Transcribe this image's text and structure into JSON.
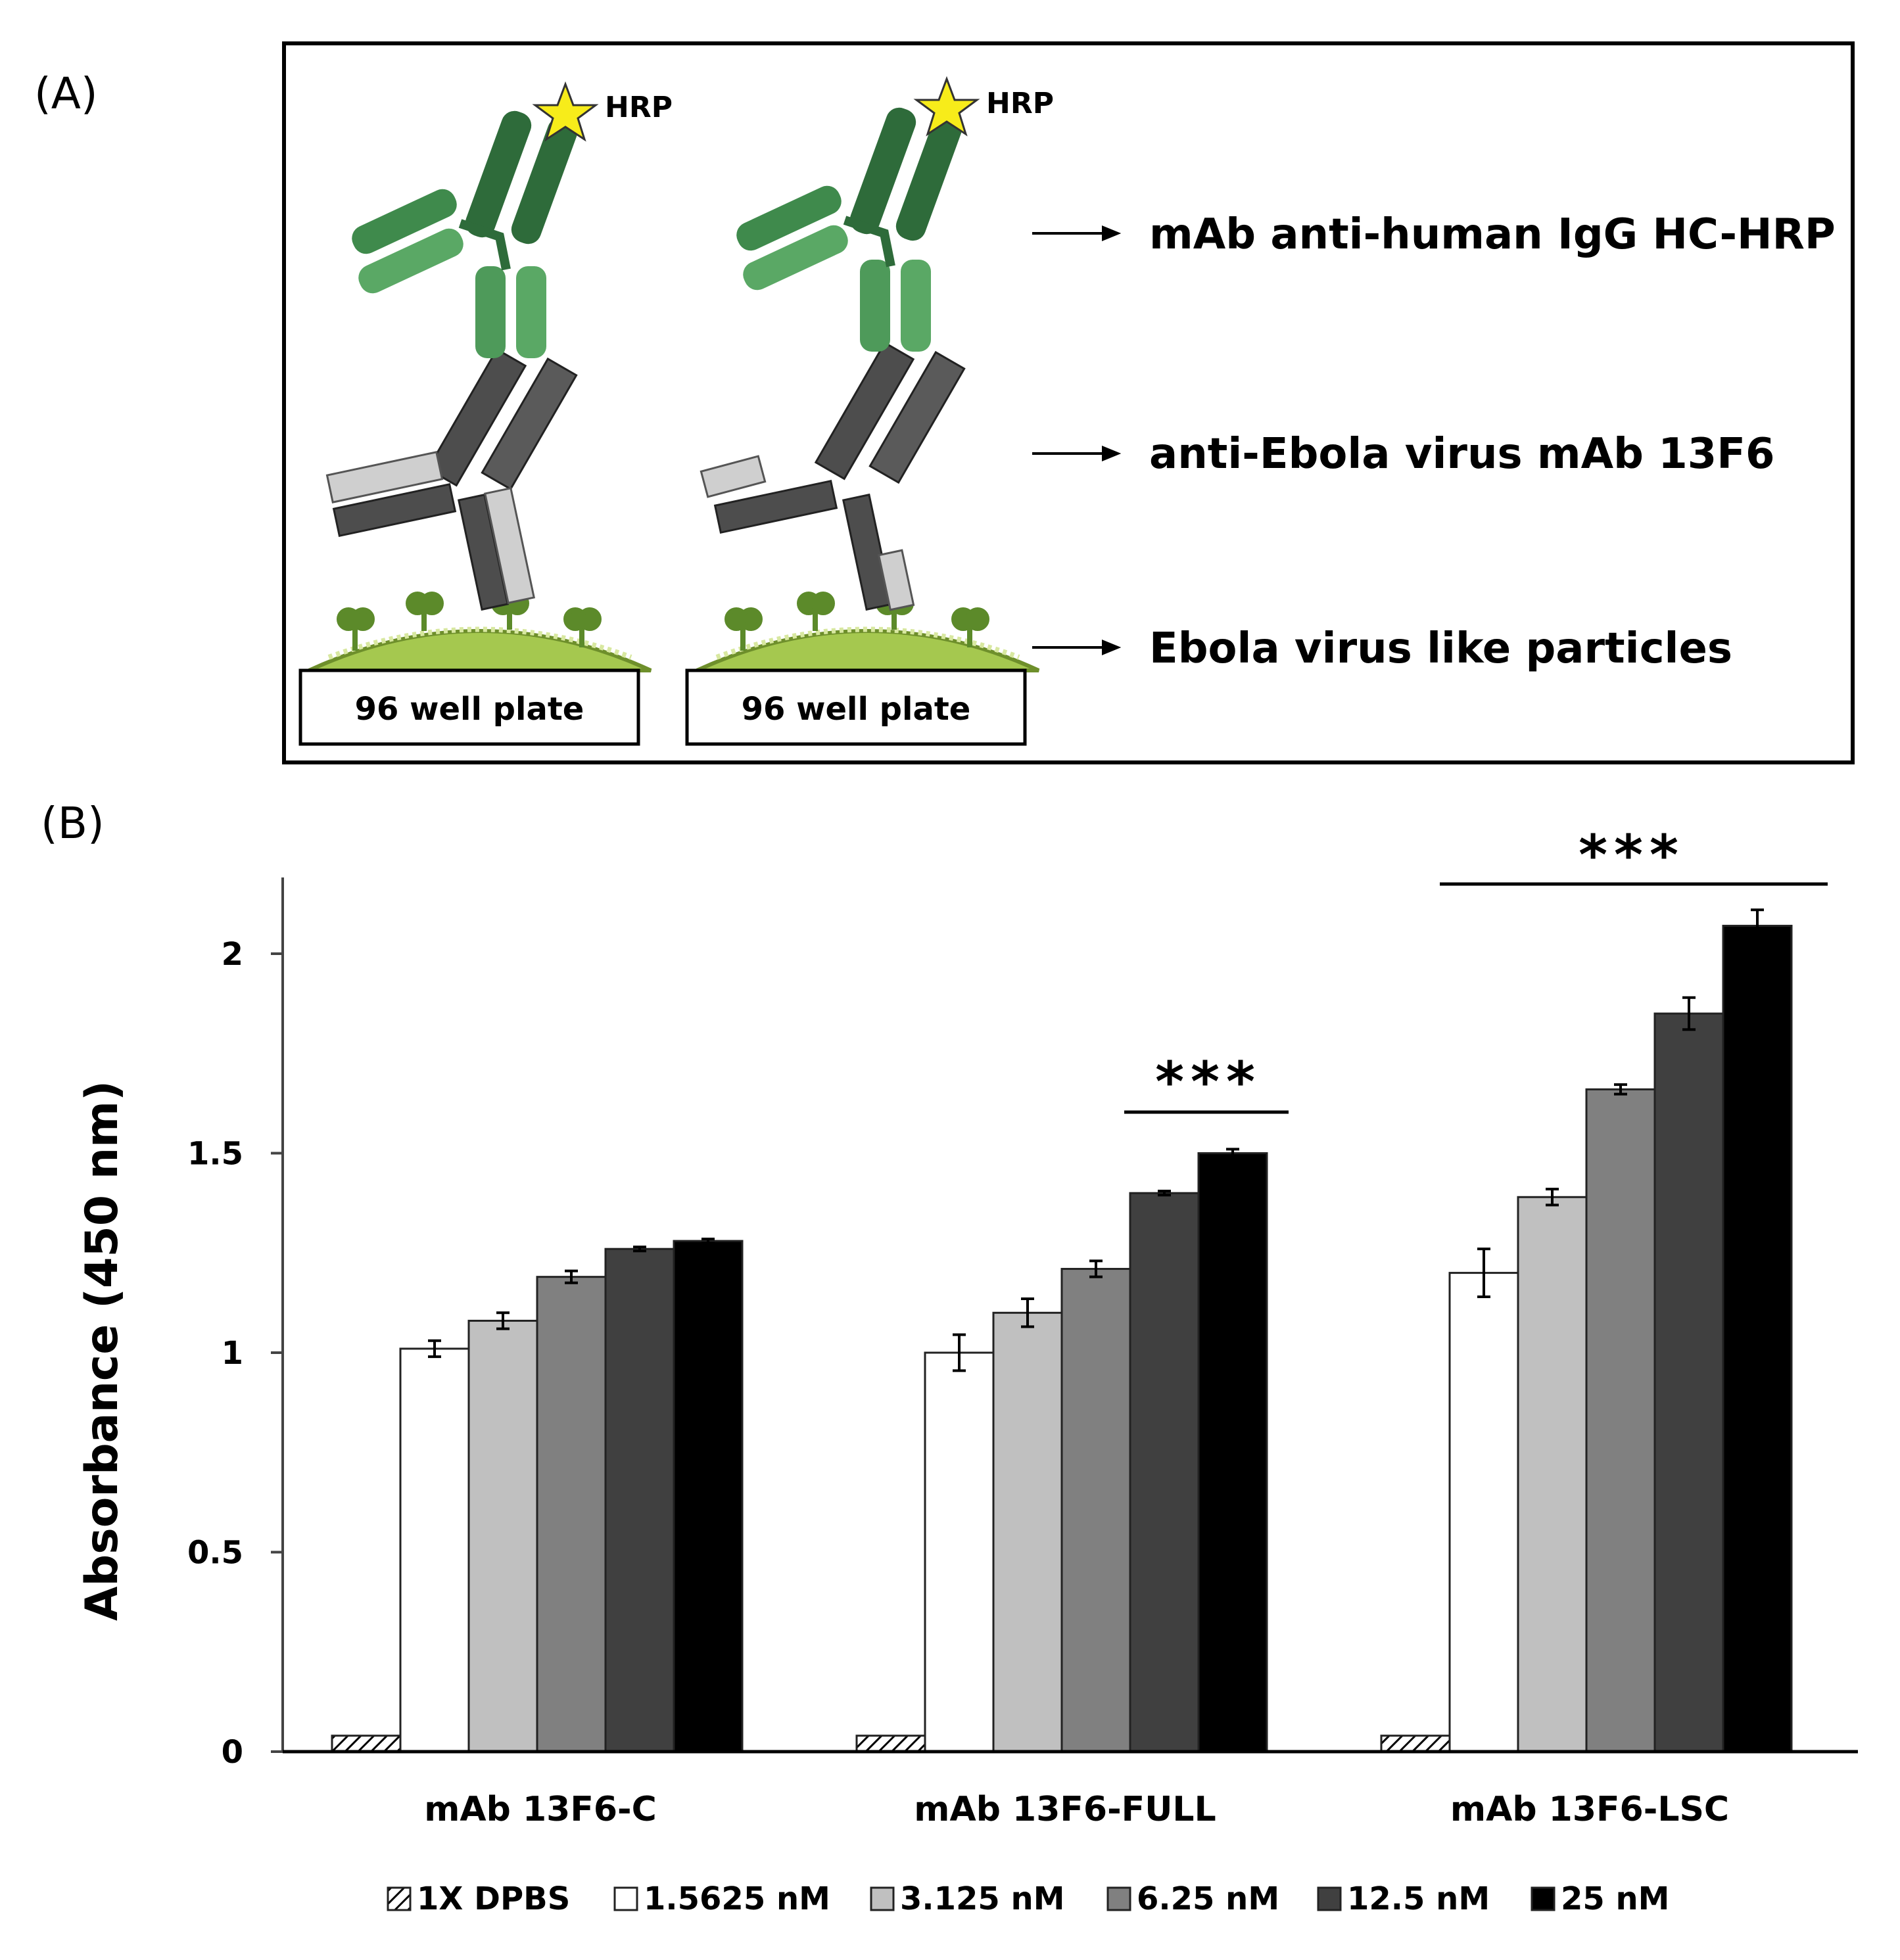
{
  "panel_a": {
    "label": "(A)",
    "hrp_label": "HRP",
    "plate_label": "96 well plate",
    "callouts": [
      "mAb anti-human IgG HC-HRP",
      "anti-Ebola virus mAb 13F6",
      "Ebola virus like particles"
    ]
  },
  "panel_b": {
    "label": "(B)",
    "significance": [
      "***",
      "***"
    ]
  },
  "chart_data": {
    "type": "bar",
    "title": "",
    "xlabel": "",
    "ylabel": "Absorbance (450 nm)",
    "ylim": [
      0,
      2.2
    ],
    "yticks": [
      "0",
      "0.5",
      "1",
      "1.5",
      "2"
    ],
    "ytick_values": [
      0,
      0.5,
      1,
      1.5,
      2
    ],
    "categories": [
      "mAb 13F6-C",
      "mAb 13F6-FULL",
      "mAb 13F6-LSC"
    ],
    "series": [
      {
        "name": "1X DPBS",
        "fill": "hatch",
        "values": [
          0.04,
          0.04,
          0.04
        ],
        "errors": [
          0,
          0,
          0
        ]
      },
      {
        "name": "1.5625 nM",
        "fill": "#ffffff",
        "values": [
          1.01,
          1.0,
          1.2
        ],
        "errors": [
          0.02,
          0.045,
          0.06
        ]
      },
      {
        "name": "3.125 nM",
        "fill": "#c0c0c0",
        "values": [
          1.08,
          1.1,
          1.39
        ],
        "errors": [
          0.02,
          0.035,
          0.02
        ]
      },
      {
        "name": "6.25 nM",
        "fill": "#808080",
        "values": [
          1.19,
          1.21,
          1.66
        ],
        "errors": [
          0.015,
          0.02,
          0.012
        ]
      },
      {
        "name": "12.5 nM",
        "fill": "#404040",
        "values": [
          1.26,
          1.4,
          1.85
        ],
        "errors": [
          0.005,
          0.005,
          0.04
        ]
      },
      {
        "name": "25 nM",
        "fill": "#000000",
        "values": [
          1.28,
          1.5,
          2.07
        ],
        "errors": [
          0.005,
          0.01,
          0.04
        ]
      }
    ],
    "legend_position": "bottom"
  }
}
